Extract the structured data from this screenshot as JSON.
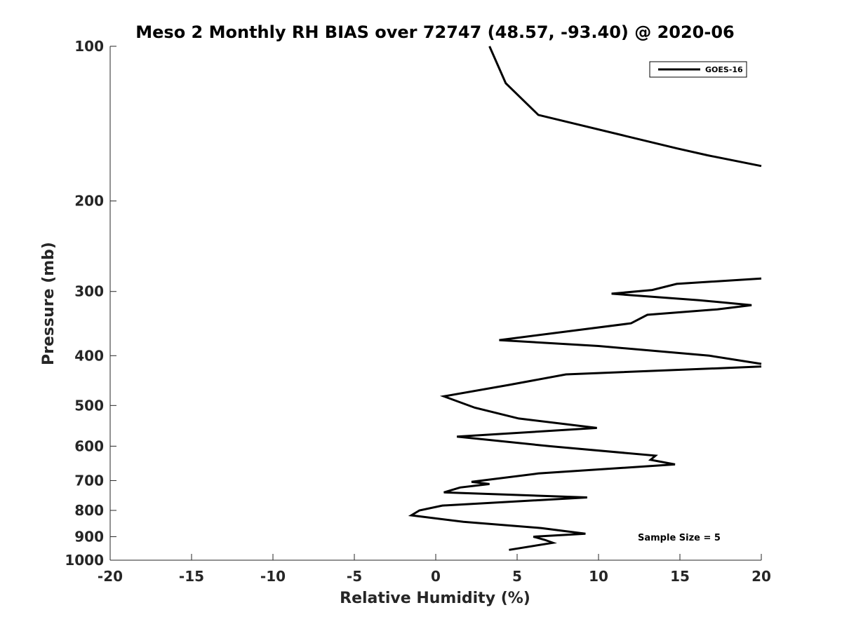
{
  "chart_data": {
    "type": "line",
    "title": "Meso 2 Monthly RH BIAS over 72747 (48.57, -93.40) @ 2020-06",
    "xlabel": "Relative Humidity (%)",
    "ylabel": "Pressure (mb)",
    "xlim": [
      -20,
      20
    ],
    "ylim": [
      100,
      1000
    ],
    "yscale": "log",
    "y_reversed": true,
    "x_ticks": [
      -20,
      -15,
      -10,
      -5,
      0,
      5,
      10,
      15,
      20
    ],
    "x_tick_labels": [
      "-20",
      "-15",
      "-10",
      "-5",
      "0",
      "5",
      "10",
      "15",
      "20"
    ],
    "y_ticks": [
      100,
      200,
      300,
      400,
      500,
      600,
      700,
      800,
      900,
      1000
    ],
    "y_tick_labels": [
      "100",
      "200",
      "300",
      "400",
      "500",
      "600",
      "700",
      "800",
      "900",
      "1000"
    ],
    "grid": false,
    "legend_position": "top-right",
    "annotation": "Sample Size = 5",
    "series": [
      {
        "name": "GOES-16",
        "color": "#000000",
        "segments": [
          [
            [
              3.3,
              100
            ],
            [
              4.3,
              118
            ],
            [
              6.3,
              136
            ],
            [
              14.8,
              158
            ],
            [
              16.7,
              163
            ],
            [
              20,
              171
            ]
          ],
          [
            [
              20,
              283
            ],
            [
              14.8,
              290
            ],
            [
              13.3,
              298
            ],
            [
              10.8,
              303
            ],
            [
              16.2,
              312
            ],
            [
              19.4,
              319
            ],
            [
              17.3,
              325
            ],
            [
              13.0,
              333
            ],
            [
              12.0,
              346
            ],
            [
              3.9,
              373
            ],
            [
              10.0,
              383
            ],
            [
              16.8,
              400
            ],
            [
              20,
              415
            ]
          ],
          [
            [
              20,
              420
            ],
            [
              8.0,
              435
            ],
            [
              4.5,
              456
            ],
            [
              0.5,
              480
            ],
            [
              2.4,
              505
            ],
            [
              5.1,
              530
            ],
            [
              9.9,
              553
            ],
            [
              1.3,
              575
            ],
            [
              7.0,
              600
            ],
            [
              13.5,
              626
            ],
            [
              13.2,
              638
            ],
            [
              14.7,
              651
            ],
            [
              6.3,
              678
            ],
            [
              2.2,
              704
            ],
            [
              3.3,
              711
            ],
            [
              1.5,
              722
            ],
            [
              0.5,
              738
            ],
            [
              9.3,
              755
            ],
            [
              0.4,
              783
            ],
            [
              -1.0,
              800
            ],
            [
              -1.5,
              818
            ],
            [
              1.7,
              842
            ],
            [
              6.5,
              866
            ],
            [
              9.2,
              888
            ],
            [
              6.0,
              900
            ],
            [
              6.7,
              913
            ],
            [
              7.2,
              925
            ],
            [
              4.5,
              955
            ]
          ]
        ]
      }
    ]
  }
}
